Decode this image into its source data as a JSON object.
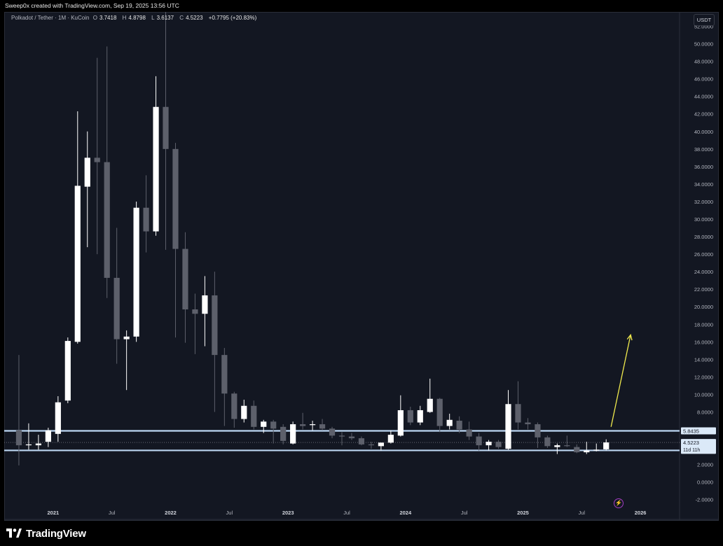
{
  "header": {
    "creator_text": "Sweep0x created with TradingView.com, Sep 19, 2025 13:56 UTC"
  },
  "legend": {
    "symbol": "Polkadot / Tether · 1M · KuCoin",
    "open_label": "O",
    "open": "3.7418",
    "high_label": "H",
    "high": "4.8798",
    "low_label": "L",
    "low": "3.6137",
    "close_label": "C",
    "close": "4.5223",
    "change": "+0.7795 (+20.83%)"
  },
  "currency": "USDT",
  "brand": {
    "name": "TradingView",
    "logo_icon": "tradingview-logo-icon"
  },
  "lightning_icon": "lightning-icon",
  "colors": {
    "background": "#131722",
    "up": "#ffffff",
    "down": "#5d606b",
    "level_line": "#bcd6f2",
    "arrow": "#f0ea4d",
    "price_tag": "#dbe9f8"
  },
  "chart_data": {
    "type": "candlestick",
    "interval": "1M",
    "ylim": [
      -2.5,
      53
    ],
    "ytick_labels": [
      "-2.0000",
      "0.0000",
      "2.0000",
      "4.0000",
      "6.0000",
      "8.0000",
      "10.0000",
      "12.0000",
      "14.0000",
      "16.0000",
      "18.0000",
      "20.0000",
      "22.0000",
      "24.0000",
      "26.0000",
      "28.0000",
      "30.0000",
      "32.0000",
      "34.0000",
      "36.0000",
      "38.0000",
      "40.0000",
      "42.0000",
      "44.0000",
      "46.0000",
      "48.0000",
      "50.0000",
      "52.0000"
    ],
    "ytick_values": [
      -2,
      0,
      2,
      4,
      6,
      8,
      10,
      12,
      14,
      16,
      18,
      20,
      22,
      24,
      26,
      28,
      30,
      32,
      34,
      36,
      38,
      40,
      42,
      44,
      46,
      48,
      50,
      52
    ],
    "xtick_labels": [
      "2021",
      "Jul",
      "2022",
      "Jul",
      "2023",
      "Jul",
      "2024",
      "Jul",
      "2025",
      "Jul",
      "2026"
    ],
    "xtick_dates": [
      "2021-01",
      "2021-07",
      "2022-01",
      "2022-07",
      "2023-01",
      "2023-07",
      "2024-01",
      "2024-07",
      "2025-01",
      "2025-07",
      "2026-01"
    ],
    "x_range": [
      "2020-08",
      "2026-05"
    ],
    "candles": [
      {
        "date": "2020-09",
        "o": 5.9,
        "h": 14.5,
        "l": 1.9,
        "c": 4.2
      },
      {
        "date": "2020-10",
        "o": 4.2,
        "h": 6.7,
        "l": 3.7,
        "c": 4.3
      },
      {
        "date": "2020-11",
        "o": 4.2,
        "h": 5.4,
        "l": 3.7,
        "c": 4.4
      },
      {
        "date": "2020-12",
        "o": 4.6,
        "h": 6.2,
        "l": 4.0,
        "c": 5.9
      },
      {
        "date": "2021-01",
        "o": 5.5,
        "h": 9.8,
        "l": 4.6,
        "c": 9.1
      },
      {
        "date": "2021-02",
        "o": 9.3,
        "h": 16.5,
        "l": 9.0,
        "c": 16.1
      },
      {
        "date": "2021-03",
        "o": 16.0,
        "h": 42.3,
        "l": 15.8,
        "c": 33.8
      },
      {
        "date": "2021-04",
        "o": 33.7,
        "h": 40.0,
        "l": 26.8,
        "c": 37.0
      },
      {
        "date": "2021-05",
        "o": 37.0,
        "h": 48.4,
        "l": 26.0,
        "c": 36.5
      },
      {
        "date": "2021-06",
        "o": 36.5,
        "h": 49.7,
        "l": 21.0,
        "c": 23.3
      },
      {
        "date": "2021-07",
        "o": 23.3,
        "h": 29.0,
        "l": 13.5,
        "c": 16.3
      },
      {
        "date": "2021-08",
        "o": 16.3,
        "h": 17.3,
        "l": 10.5,
        "c": 16.6
      },
      {
        "date": "2021-09",
        "o": 16.6,
        "h": 32.0,
        "l": 16.0,
        "c": 31.3
      },
      {
        "date": "2021-10",
        "o": 31.3,
        "h": 35.0,
        "l": 26.2,
        "c": 28.6
      },
      {
        "date": "2021-11",
        "o": 28.6,
        "h": 46.3,
        "l": 28.1,
        "c": 42.8
      },
      {
        "date": "2021-12",
        "o": 42.8,
        "h": 55.0,
        "l": 26.5,
        "c": 38.0
      },
      {
        "date": "2022-01",
        "o": 38.0,
        "h": 38.7,
        "l": 16.5,
        "c": 26.6
      },
      {
        "date": "2022-02",
        "o": 26.6,
        "h": 28.5,
        "l": 15.9,
        "c": 19.7
      },
      {
        "date": "2022-03",
        "o": 19.7,
        "h": 21.5,
        "l": 14.6,
        "c": 19.2
      },
      {
        "date": "2022-04",
        "o": 19.2,
        "h": 23.5,
        "l": 15.5,
        "c": 21.3
      },
      {
        "date": "2022-05",
        "o": 21.3,
        "h": 24.0,
        "l": 8.0,
        "c": 14.5
      },
      {
        "date": "2022-06",
        "o": 14.5,
        "h": 15.3,
        "l": 6.4,
        "c": 10.1
      },
      {
        "date": "2022-07",
        "o": 10.1,
        "h": 10.3,
        "l": 6.2,
        "c": 7.2
      },
      {
        "date": "2022-08",
        "o": 7.2,
        "h": 9.4,
        "l": 6.8,
        "c": 8.7
      },
      {
        "date": "2022-09",
        "o": 8.7,
        "h": 9.3,
        "l": 6.0,
        "c": 6.3
      },
      {
        "date": "2022-10",
        "o": 6.3,
        "h": 7.1,
        "l": 5.6,
        "c": 6.9
      },
      {
        "date": "2022-11",
        "o": 6.9,
        "h": 7.1,
        "l": 4.4,
        "c": 6.1
      },
      {
        "date": "2022-12",
        "o": 6.3,
        "h": 6.6,
        "l": 4.3,
        "c": 4.7
      },
      {
        "date": "2023-01",
        "o": 4.4,
        "h": 6.9,
        "l": 4.3,
        "c": 6.6
      },
      {
        "date": "2023-02",
        "o": 6.6,
        "h": 7.9,
        "l": 6.0,
        "c": 6.4
      },
      {
        "date": "2023-03",
        "o": 6.5,
        "h": 7.0,
        "l": 5.9,
        "c": 6.6
      },
      {
        "date": "2023-04",
        "o": 6.6,
        "h": 7.2,
        "l": 5.9,
        "c": 6.1
      },
      {
        "date": "2023-05",
        "o": 6.1,
        "h": 6.3,
        "l": 5.0,
        "c": 5.3
      },
      {
        "date": "2023-06",
        "o": 5.3,
        "h": 5.7,
        "l": 4.2,
        "c": 5.2
      },
      {
        "date": "2023-07",
        "o": 5.2,
        "h": 5.6,
        "l": 4.8,
        "c": 5.0
      },
      {
        "date": "2023-08",
        "o": 5.0,
        "h": 5.2,
        "l": 4.2,
        "c": 4.3
      },
      {
        "date": "2023-09",
        "o": 4.3,
        "h": 4.6,
        "l": 3.8,
        "c": 4.2
      },
      {
        "date": "2023-10",
        "o": 4.1,
        "h": 4.5,
        "l": 3.6,
        "c": 4.5
      },
      {
        "date": "2023-11",
        "o": 4.5,
        "h": 5.9,
        "l": 4.4,
        "c": 5.4
      },
      {
        "date": "2023-12",
        "o": 5.3,
        "h": 9.9,
        "l": 5.2,
        "c": 8.2
      },
      {
        "date": "2024-01",
        "o": 8.2,
        "h": 8.6,
        "l": 6.5,
        "c": 6.8
      },
      {
        "date": "2024-02",
        "o": 6.8,
        "h": 8.7,
        "l": 6.5,
        "c": 8.2
      },
      {
        "date": "2024-03",
        "o": 8.0,
        "h": 11.8,
        "l": 7.9,
        "c": 9.5
      },
      {
        "date": "2024-04",
        "o": 9.5,
        "h": 9.6,
        "l": 5.7,
        "c": 6.4
      },
      {
        "date": "2024-05",
        "o": 6.4,
        "h": 7.8,
        "l": 6.0,
        "c": 7.1
      },
      {
        "date": "2024-06",
        "o": 7.0,
        "h": 7.5,
        "l": 5.6,
        "c": 6.0
      },
      {
        "date": "2024-07",
        "o": 6.0,
        "h": 6.9,
        "l": 4.8,
        "c": 5.2
      },
      {
        "date": "2024-08",
        "o": 5.2,
        "h": 5.6,
        "l": 3.6,
        "c": 4.2
      },
      {
        "date": "2024-09",
        "o": 4.2,
        "h": 4.8,
        "l": 3.6,
        "c": 4.6
      },
      {
        "date": "2024-10",
        "o": 4.6,
        "h": 4.8,
        "l": 3.8,
        "c": 4.0
      },
      {
        "date": "2024-11",
        "o": 3.8,
        "h": 10.5,
        "l": 3.7,
        "c": 8.9
      },
      {
        "date": "2024-12",
        "o": 8.9,
        "h": 11.5,
        "l": 6.0,
        "c": 6.8
      },
      {
        "date": "2025-01",
        "o": 6.8,
        "h": 7.3,
        "l": 6.0,
        "c": 6.6
      },
      {
        "date": "2025-02",
        "o": 6.6,
        "h": 6.8,
        "l": 3.9,
        "c": 5.1
      },
      {
        "date": "2025-03",
        "o": 5.1,
        "h": 5.3,
        "l": 3.9,
        "c": 4.1
      },
      {
        "date": "2025-04",
        "o": 4.0,
        "h": 4.4,
        "l": 3.2,
        "c": 4.2
      },
      {
        "date": "2025-05",
        "o": 4.2,
        "h": 5.3,
        "l": 4.0,
        "c": 4.1
      },
      {
        "date": "2025-06",
        "o": 4.0,
        "h": 4.3,
        "l": 3.3,
        "c": 3.4
      },
      {
        "date": "2025-07",
        "o": 3.4,
        "h": 4.6,
        "l": 3.2,
        "c": 3.6
      },
      {
        "date": "2025-08",
        "o": 3.6,
        "h": 4.4,
        "l": 3.5,
        "c": 3.7
      },
      {
        "date": "2025-09",
        "o": 3.7418,
        "h": 4.8798,
        "l": 3.6137,
        "c": 4.5223
      }
    ],
    "horizontal_levels": [
      {
        "value": 5.8435,
        "label": "5.8435"
      },
      {
        "value": 3.6141,
        "label": "3.6141"
      }
    ],
    "last_price": {
      "value": 4.5223,
      "label": "4.5223",
      "countdown": "11d 11h"
    },
    "annotation_arrow": {
      "from": {
        "date": "2025-10",
        "value": 6.3
      },
      "to": {
        "date": "2025-12",
        "value": 16.8
      }
    }
  }
}
